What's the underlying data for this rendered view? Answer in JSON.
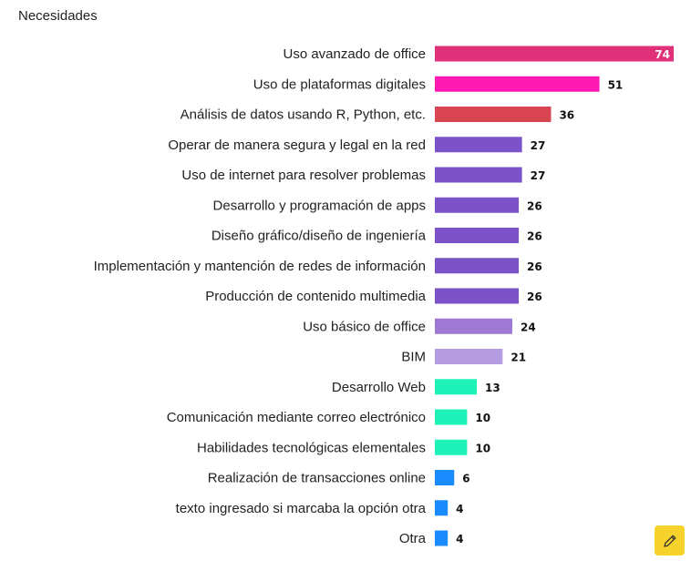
{
  "chart_data": {
    "type": "bar",
    "orientation": "horizontal",
    "title": "Necesidades",
    "xlabel": "",
    "ylabel": "",
    "xlim": [
      0,
      74
    ],
    "categories": [
      "Uso avanzado de office",
      "Uso de plataformas digitales",
      "Análisis de datos usando R, Python, etc.",
      "Operar de manera segura y legal en la red",
      "Uso de internet para resolver problemas",
      "Desarrollo y programación de apps",
      "Diseño gráfico/diseño de ingeniería",
      "Implementación y mantención de redes de información",
      "Producción de contenido multimedia",
      "Uso básico de office",
      "BIM",
      "Desarrollo Web",
      "Comunicación mediante correo electrónico",
      "Habilidades tecnológicas elementales",
      "Realización de transacciones online",
      "texto ingresado si marcaba la opción otra",
      "Otra"
    ],
    "values": [
      74,
      51,
      36,
      27,
      27,
      26,
      26,
      26,
      26,
      24,
      21,
      13,
      10,
      10,
      6,
      4,
      4
    ],
    "colors": [
      "#e0307a",
      "#ff1ab3",
      "#d94452",
      "#7b52c7",
      "#7b52c7",
      "#7b52c7",
      "#7b52c7",
      "#7b52c7",
      "#7b52c7",
      "#9e7ad4",
      "#b59be0",
      "#1ff2b8",
      "#1ff2b8",
      "#1ff2b8",
      "#1a8cff",
      "#1a8cff",
      "#1a8cff"
    ]
  },
  "toolbar": {
    "edit_icon": "pencil-icon"
  }
}
